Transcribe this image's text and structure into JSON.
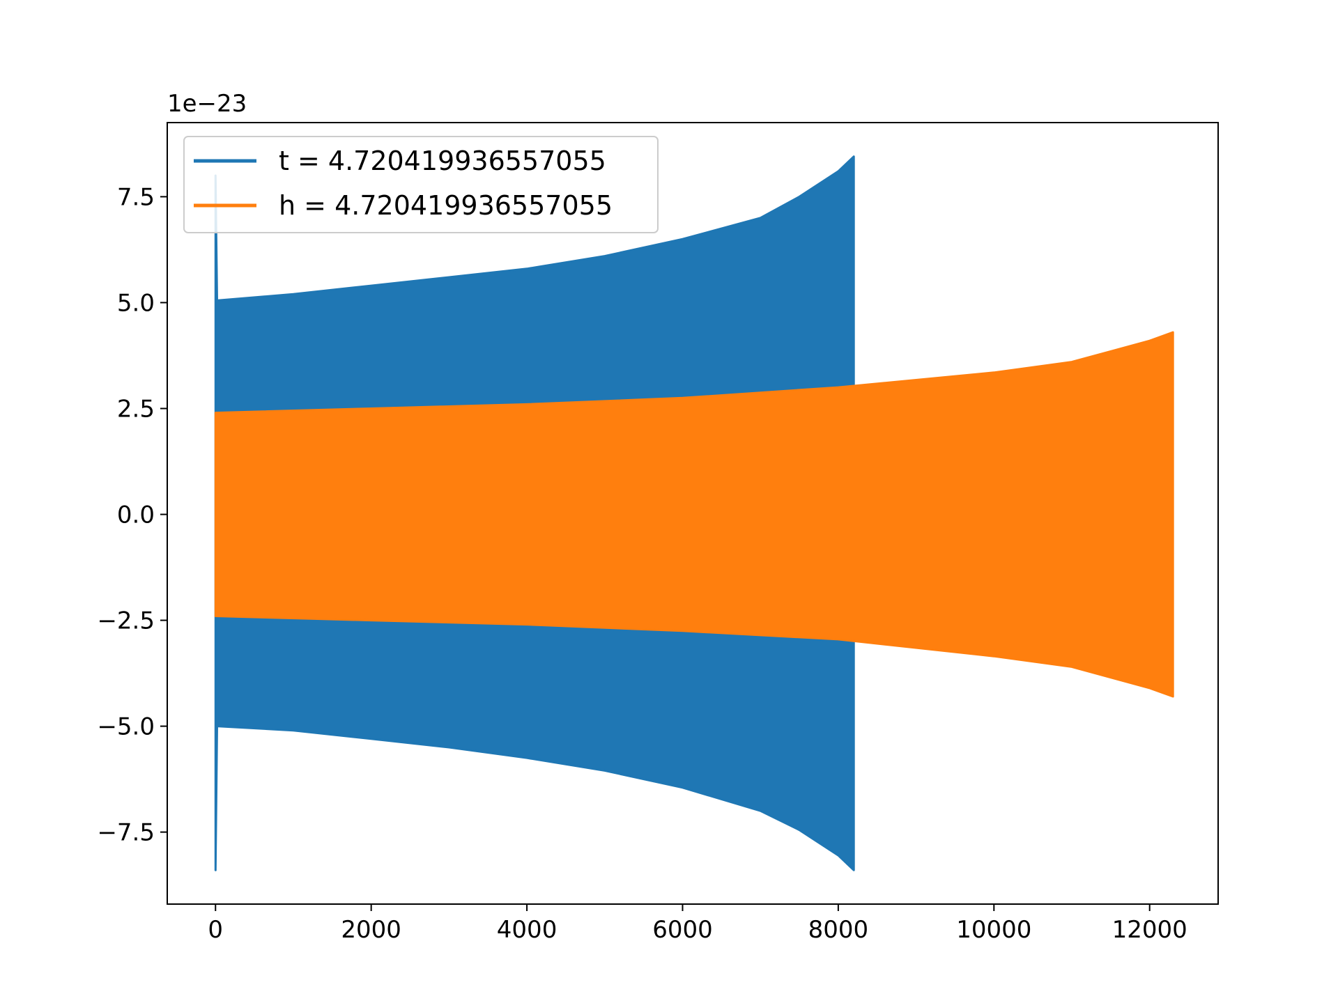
{
  "chart_data": {
    "type": "line",
    "title": "",
    "xlabel": "",
    "ylabel": "",
    "y_offset_label": "1e−23",
    "xlim": [
      -620,
      12880
    ],
    "ylim": [
      -9.2,
      9.25
    ],
    "x_ticks": [
      0,
      2000,
      4000,
      6000,
      8000,
      10000,
      12000
    ],
    "x_tick_labels": [
      "0",
      "2000",
      "4000",
      "6000",
      "8000",
      "10000",
      "12000"
    ],
    "y_ticks": [
      -7.5,
      -5.0,
      -2.5,
      0.0,
      2.5,
      5.0,
      7.5
    ],
    "y_tick_labels": [
      "−7.5",
      "−5.0",
      "−2.5",
      "0.0",
      "2.5",
      "5.0",
      "7.5"
    ],
    "grid": false,
    "legend_position": "top-left",
    "series": [
      {
        "name": "t = 4.720419936557055",
        "color": "#1f77b4",
        "x": [
          0,
          20,
          1000,
          2000,
          3000,
          4000,
          5000,
          6000,
          7000,
          7500,
          8000,
          8200
        ],
        "upper": [
          8.0,
          5.05,
          5.2,
          5.4,
          5.6,
          5.8,
          6.1,
          6.5,
          7.0,
          7.5,
          8.1,
          8.45
        ],
        "lower": [
          -8.4,
          -5.0,
          -5.1,
          -5.3,
          -5.5,
          -5.75,
          -6.05,
          -6.45,
          -7.0,
          -7.45,
          -8.05,
          -8.4
        ]
      },
      {
        "name": "h = 4.720419936557055",
        "color": "#ff7f0e",
        "x": [
          0,
          2000,
          4000,
          6000,
          8000,
          10000,
          11000,
          11500,
          12000,
          12300
        ],
        "upper": [
          2.4,
          2.5,
          2.6,
          2.75,
          3.0,
          3.35,
          3.6,
          3.85,
          4.1,
          4.3
        ],
        "lower": [
          -2.4,
          -2.5,
          -2.6,
          -2.75,
          -2.95,
          -3.35,
          -3.6,
          -3.85,
          -4.1,
          -4.3
        ]
      }
    ]
  }
}
